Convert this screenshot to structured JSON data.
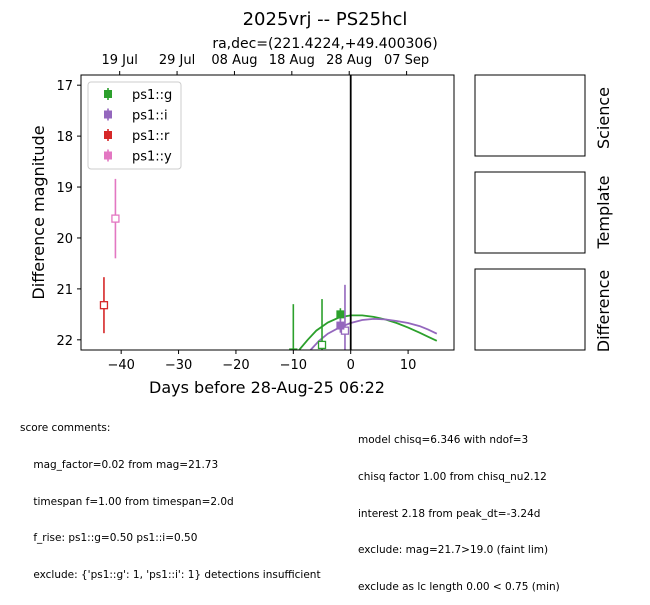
{
  "chart_data": {
    "type": "scatter",
    "title": "2025vrj -- PS25hcl",
    "subtitle": "ra,dec=(221.4224,+49.400306)",
    "xlabel": "Days before 28-Aug-25 06:22",
    "ylabel": "Difference magnitude",
    "xlim": [
      -47,
      18
    ],
    "ylim": [
      22.2,
      16.8
    ],
    "x_ticks": [
      -40,
      -30,
      -20,
      -10,
      0,
      10
    ],
    "y_ticks": [
      17,
      18,
      19,
      20,
      21,
      22
    ],
    "top_axis_ticks": [
      {
        "x": -40.26,
        "label": "19 Jul"
      },
      {
        "x": -30.26,
        "label": "29 Jul"
      },
      {
        "x": -20.26,
        "label": "08 Aug"
      },
      {
        "x": -10.26,
        "label": "18 Aug"
      },
      {
        "x": -0.26,
        "label": "28 Aug"
      },
      {
        "x": 9.74,
        "label": "07 Sep"
      }
    ],
    "vline_x": 0,
    "grid": false,
    "legend_position": "top-left",
    "series": [
      {
        "name": "ps1::g",
        "color": "#2ca02c",
        "detections": [
          {
            "x": -1.8,
            "y": 21.5,
            "err": 0.12
          }
        ],
        "limits": [
          {
            "x": -10.0,
            "y": 22.25,
            "err": 0.95
          },
          {
            "x": -5.0,
            "y": 22.1,
            "err": 0.9
          }
        ],
        "model": [
          [
            -9.0,
            22.2
          ],
          [
            -7.5,
            22.0
          ],
          [
            -6.0,
            21.82
          ],
          [
            -4.0,
            21.66
          ],
          [
            -2.0,
            21.56
          ],
          [
            0.0,
            21.52
          ],
          [
            2.0,
            21.52
          ],
          [
            4.0,
            21.55
          ],
          [
            6.0,
            21.6
          ],
          [
            8.0,
            21.67
          ],
          [
            10.0,
            21.76
          ],
          [
            12.0,
            21.86
          ],
          [
            13.5,
            21.94
          ],
          [
            15.0,
            22.02
          ]
        ]
      },
      {
        "name": "ps1::i",
        "color": "#9467bd",
        "detections": [
          {
            "x": -1.8,
            "y": 21.72,
            "err": 0.14
          }
        ],
        "limits": [
          {
            "x": -1.0,
            "y": 21.82,
            "err": 0.9
          }
        ],
        "model": [
          [
            -7.0,
            22.2
          ],
          [
            -5.5,
            22.02
          ],
          [
            -4.0,
            21.88
          ],
          [
            -2.0,
            21.76
          ],
          [
            0.0,
            21.67
          ],
          [
            2.0,
            21.61
          ],
          [
            4.0,
            21.59
          ],
          [
            6.0,
            21.6
          ],
          [
            8.0,
            21.63
          ],
          [
            10.0,
            21.67
          ],
          [
            12.0,
            21.73
          ],
          [
            13.5,
            21.8
          ],
          [
            15.0,
            21.88
          ]
        ]
      },
      {
        "name": "ps1::r",
        "color": "#d62728",
        "detections": [],
        "limits": [
          {
            "x": -43.0,
            "y": 21.32,
            "err": 0.55
          }
        ],
        "model": []
      },
      {
        "name": "ps1::y",
        "color": "#e377c2",
        "detections": [],
        "limits": [
          {
            "x": -41.0,
            "y": 19.62,
            "err": 0.78
          }
        ],
        "model": []
      }
    ]
  },
  "stamp_labels": [
    "Science",
    "Template",
    "Difference"
  ],
  "score_comments": {
    "left": [
      "score comments:",
      "    mag_factor=0.02 from mag=21.73",
      "    timespan f=1.00 from timespan=2.0d",
      "    f_rise: ps1::g=0.50 ps1::i=0.50",
      "    exclude: {'ps1::g': 1, 'ps1::i': 1} detections insufficient"
    ],
    "right": [
      "model chisq=6.346 with ndof=3",
      "chisq factor 1.00 from chisq_nu2.12",
      "interest 2.18 from peak_dt=-3.24d",
      "exclude: mag=21.7>19.0 (faint lim)",
      "exclude as lc length 0.00 < 0.75 (min)"
    ]
  }
}
